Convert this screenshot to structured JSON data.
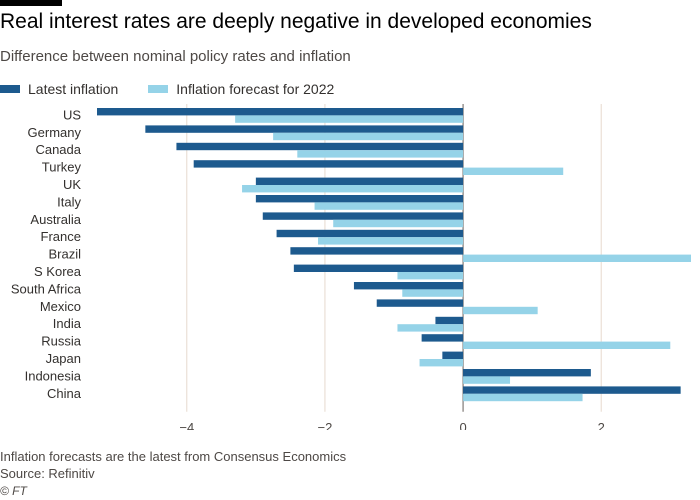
{
  "header": {
    "title": "Real interest rates are deeply negative in developed economies",
    "subtitle": "Difference between nominal policy rates and inflation"
  },
  "legend": {
    "items": [
      {
        "label": "Latest inflation",
        "color": "#1d5a8e"
      },
      {
        "label": "Inflation forecast for 2022",
        "color": "#95d3e8"
      }
    ]
  },
  "footer": {
    "note": "Inflation forecasts are the latest from Consensus Economics",
    "source": "Source: Refinitiv",
    "credit": "© FT"
  },
  "chart_data": {
    "type": "bar",
    "orientation": "horizontal",
    "title": "Real interest rates are deeply negative in developed economies",
    "subtitle": "Difference between nominal policy rates and inflation",
    "xlabel": "",
    "ylabel": "",
    "xlim": [
      -5.3,
      3.3
    ],
    "xticks": [
      -4,
      -2,
      0,
      2
    ],
    "grid": true,
    "legend_position": "top-left",
    "categories": [
      "US",
      "Germany",
      "Canada",
      "Turkey",
      "UK",
      "Italy",
      "Australia",
      "France",
      "Brazil",
      "S Korea",
      "South Africa",
      "Mexico",
      "India",
      "Russia",
      "Japan",
      "Indonesia",
      "China"
    ],
    "series": [
      {
        "name": "Latest inflation",
        "color": "#1d5a8e",
        "values": [
          -5.3,
          -4.6,
          -4.15,
          -3.9,
          -3.0,
          -3.0,
          -2.9,
          -2.7,
          -2.5,
          -2.45,
          -1.58,
          -1.25,
          -0.4,
          -0.6,
          -0.3,
          1.85,
          3.15
        ]
      },
      {
        "name": "Inflation forecast for 2022",
        "color": "#95d3e8",
        "values": [
          -3.3,
          -2.75,
          -2.4,
          1.45,
          -3.2,
          -2.15,
          -1.88,
          -2.1,
          3.3,
          -0.95,
          -0.88,
          1.08,
          -0.95,
          3.0,
          -0.63,
          0.68,
          1.73
        ]
      }
    ]
  }
}
